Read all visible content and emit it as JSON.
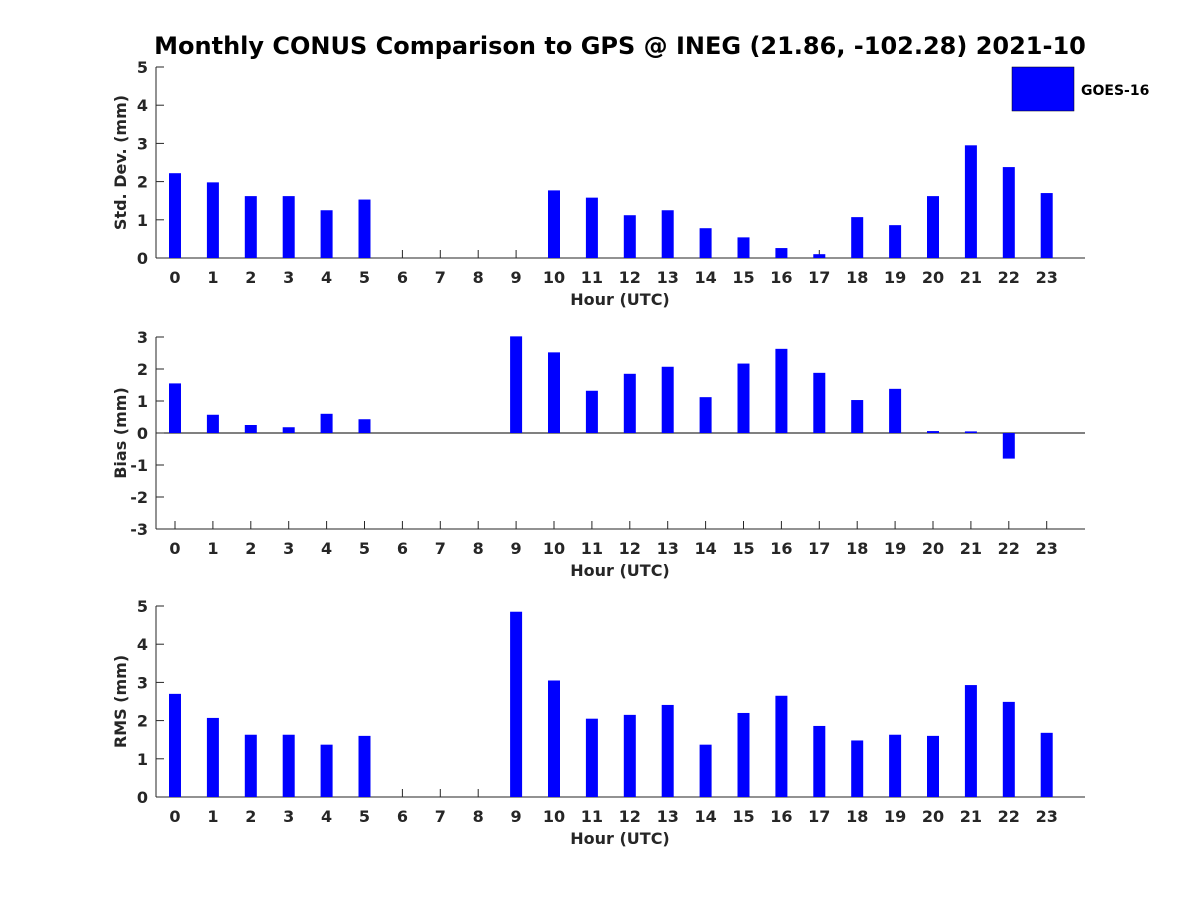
{
  "title": "Monthly CONUS Comparison to GPS @ INEG (21.86, -102.28) 2021-10",
  "legend": {
    "label": "GOES-16",
    "placement": "top-right"
  },
  "colors": {
    "bar": "#0000ff",
    "axis": "#262626"
  },
  "chart_data": [
    {
      "type": "bar",
      "xlabel": "Hour (UTC)",
      "ylabel": "Std. Dev. (mm)",
      "ylim": [
        0,
        5
      ],
      "yticks": [
        0,
        1,
        2,
        3,
        4,
        5
      ],
      "categories": [
        "0",
        "1",
        "2",
        "3",
        "4",
        "5",
        "6",
        "7",
        "8",
        "9",
        "10",
        "11",
        "12",
        "13",
        "14",
        "15",
        "16",
        "17",
        "18",
        "19",
        "20",
        "21",
        "22",
        "23"
      ],
      "series": [
        {
          "name": "GOES-16",
          "values": [
            2.22,
            1.98,
            1.62,
            1.62,
            1.25,
            1.53,
            null,
            null,
            null,
            null,
            1.77,
            1.58,
            1.12,
            1.25,
            0.78,
            0.54,
            0.26,
            0.1,
            1.07,
            0.86,
            1.62,
            2.95,
            2.38,
            1.7
          ]
        }
      ]
    },
    {
      "type": "bar",
      "xlabel": "Hour (UTC)",
      "ylabel": "Bias (mm)",
      "ylim": [
        -3,
        3
      ],
      "yticks": [
        -3,
        -2,
        -1,
        0,
        1,
        2,
        3
      ],
      "categories": [
        "0",
        "1",
        "2",
        "3",
        "4",
        "5",
        "6",
        "7",
        "8",
        "9",
        "10",
        "11",
        "12",
        "13",
        "14",
        "15",
        "16",
        "17",
        "18",
        "19",
        "20",
        "21",
        "22",
        "23"
      ],
      "series": [
        {
          "name": "GOES-16",
          "values": [
            1.55,
            0.57,
            0.25,
            0.18,
            0.6,
            0.43,
            null,
            null,
            null,
            3.02,
            2.52,
            1.32,
            1.85,
            2.07,
            1.12,
            2.17,
            2.63,
            1.88,
            1.03,
            1.38,
            0.06,
            0.05,
            -0.8,
            0.0
          ]
        }
      ]
    },
    {
      "type": "bar",
      "xlabel": "Hour (UTC)",
      "ylabel": "RMS (mm)",
      "ylim": [
        0,
        5
      ],
      "yticks": [
        0,
        1,
        2,
        3,
        4,
        5
      ],
      "categories": [
        "0",
        "1",
        "2",
        "3",
        "4",
        "5",
        "6",
        "7",
        "8",
        "9",
        "10",
        "11",
        "12",
        "13",
        "14",
        "15",
        "16",
        "17",
        "18",
        "19",
        "20",
        "21",
        "22",
        "23"
      ],
      "series": [
        {
          "name": "GOES-16",
          "values": [
            2.7,
            2.07,
            1.63,
            1.63,
            1.37,
            1.6,
            null,
            null,
            null,
            4.85,
            3.05,
            2.05,
            2.15,
            2.41,
            1.37,
            2.2,
            2.65,
            1.86,
            1.48,
            1.63,
            1.6,
            2.93,
            2.49,
            1.68
          ]
        }
      ]
    }
  ]
}
